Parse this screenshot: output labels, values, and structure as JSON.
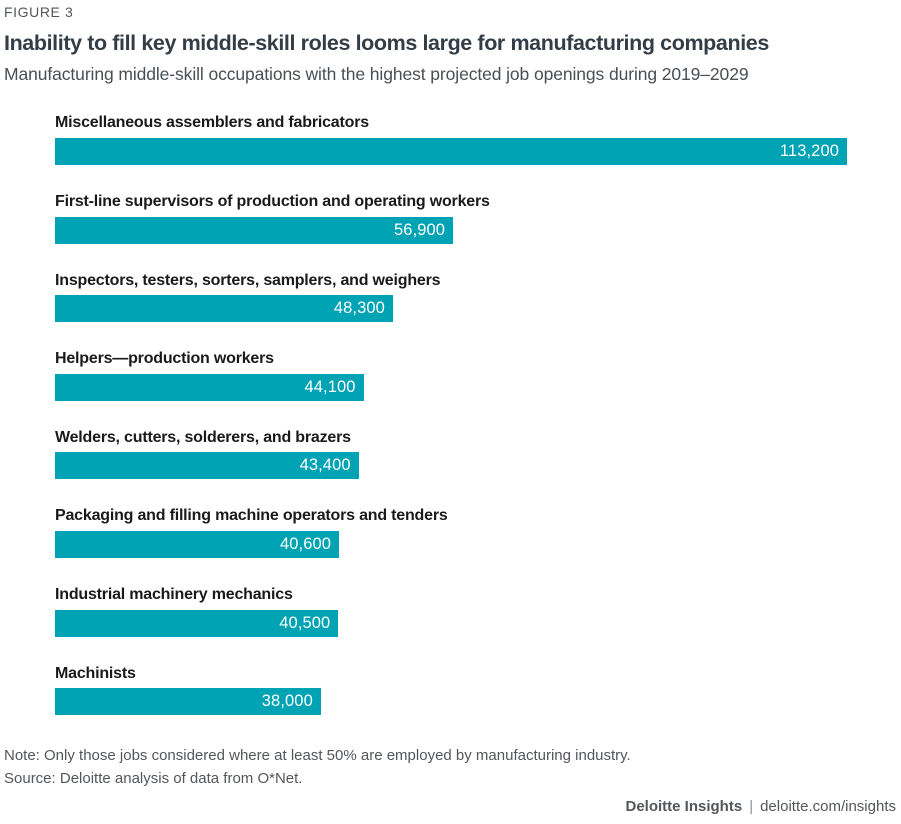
{
  "figure_label": "FIGURE 3",
  "title": "Inability to fill key middle-skill roles looms large for manufacturing companies",
  "subtitle": "Manufacturing middle-skill occupations with the highest projected job openings during 2019–2029",
  "chart_data": {
    "type": "bar",
    "orientation": "horizontal",
    "title": "Inability to fill key middle-skill roles looms large for manufacturing companies",
    "subtitle": "Manufacturing middle-skill occupations with the highest projected job openings during 2019–2029",
    "categories": [
      "Miscellaneous assemblers and fabricators",
      "First-line supervisors of production and operating workers",
      "Inspectors, testers, sorters, samplers, and weighers",
      "Helpers—production workers",
      "Welders, cutters, solderers, and brazers",
      "Packaging and filling machine operators and tenders",
      "Industrial machinery mechanics",
      "Machinists"
    ],
    "values": [
      113200,
      56900,
      48300,
      44100,
      43400,
      40600,
      40500,
      38000
    ],
    "value_labels": [
      "113,200",
      "56,900",
      "48,300",
      "44,100",
      "43,400",
      "40,600",
      "40,500",
      "38,000"
    ],
    "xlim": [
      0,
      113200
    ],
    "xlabel": "",
    "ylabel": "",
    "grid": false,
    "legend": "none",
    "bar_color": "#00A3B4",
    "value_label_color": "#ffffff",
    "value_label_position": "inside-end"
  },
  "notes": {
    "note": "Note: Only those jobs considered where at least 50% are employed by manufacturing industry.",
    "source": "Source: Deloitte analysis of data from O*Net."
  },
  "footer": {
    "brand": "Deloitte Insights",
    "separator": "|",
    "url": "deloitte.com/insights"
  },
  "colors": {
    "bar": "#00A3B4",
    "title": "#333D47",
    "muted_gray": "#53565A",
    "label_black": "#1a1a1a",
    "background": "#ffffff"
  }
}
